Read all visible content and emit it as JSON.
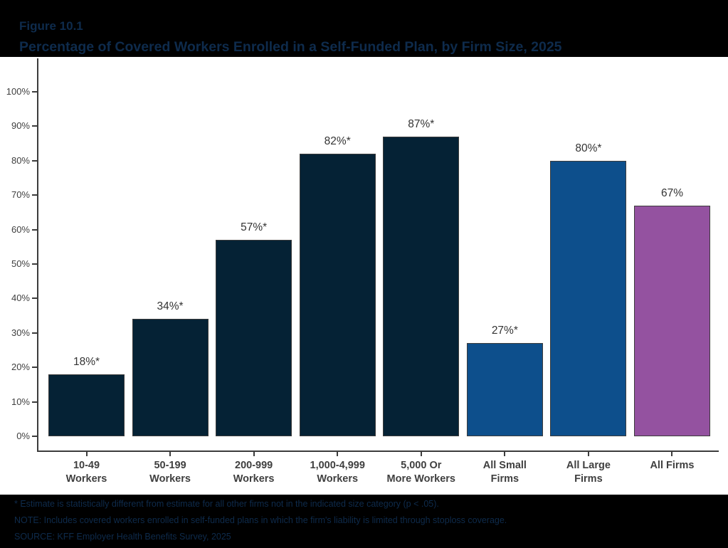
{
  "header": {
    "figure_label": "Figure 10.1",
    "title": "Percentage of Covered Workers Enrolled in a Self-Funded Plan, by Firm Size, 2025"
  },
  "chart_data": {
    "type": "bar",
    "title": "Percentage of Covered Workers Enrolled in a Self-Funded Plan, by Firm Size, 2025",
    "categories": [
      [
        "10-49",
        "Workers"
      ],
      [
        "50-199",
        "Workers"
      ],
      [
        "200-999",
        "Workers"
      ],
      [
        "1,000-4,999",
        "Workers"
      ],
      [
        "5,000 Or",
        "More Workers"
      ],
      [
        "All Small",
        "Firms"
      ],
      [
        "All Large",
        "Firms"
      ],
      [
        "All Firms"
      ]
    ],
    "values": [
      18,
      34,
      57,
      82,
      87,
      27,
      80,
      67
    ],
    "value_labels": [
      "18%*",
      "34%*",
      "57%*",
      "82%*",
      "87%*",
      "27%*",
      "80%*",
      "67%"
    ],
    "bar_color_keys": [
      "navy",
      "navy",
      "navy",
      "navy",
      "navy",
      "blue",
      "blue",
      "purple"
    ],
    "ytick_labels": [
      "0%",
      "10%",
      "20%",
      "30%",
      "40%",
      "50%",
      "60%",
      "70%",
      "80%",
      "90%",
      "100%"
    ],
    "ylim": [
      0,
      100
    ],
    "xlabel": "",
    "ylabel": "",
    "grid": false,
    "legend": "none"
  },
  "colors": {
    "navy": "#052235",
    "blue": "#0d4f8c",
    "purple": "#9452a0",
    "axis": "#3c3c3c",
    "tick_text": "#3f3f3f",
    "value_text": "#333333",
    "heading_text": "#0e2b4c",
    "panel_bg": "#ffffff",
    "page_bg": "#000000"
  },
  "footnotes": [
    "* Estimate is statistically different from estimate for all other firms not in the indicated size category (p < .05).",
    "NOTE: Includes covered workers enrolled in self-funded plans in which the firm's liability is limited through stoploss coverage.",
    "SOURCE: KFF Employer Health Benefits Survey, 2025"
  ]
}
